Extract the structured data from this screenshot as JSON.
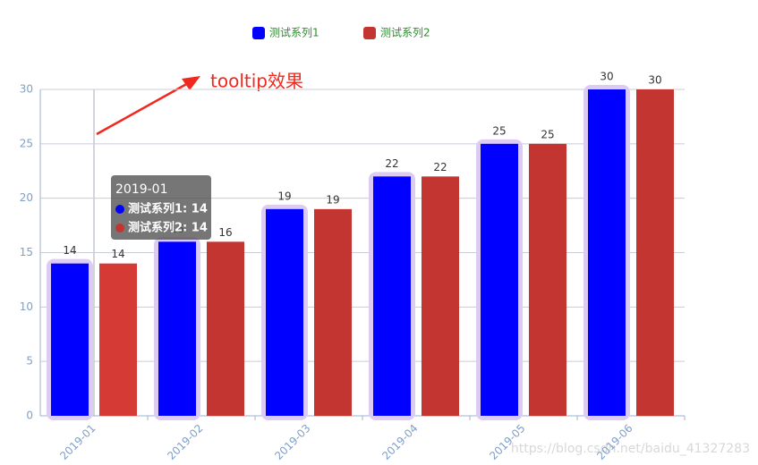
{
  "chart_data": {
    "type": "bar",
    "categories": [
      "2019-01",
      "2019-02",
      "2019-03",
      "2019-04",
      "2019-05",
      "2019-06"
    ],
    "series": [
      {
        "name": "测试系列1",
        "color": "#0000ff",
        "values": [
          14,
          16,
          19,
          22,
          25,
          30
        ]
      },
      {
        "name": "测试系列2",
        "color": "#c23531",
        "values": [
          14,
          16,
          19,
          22,
          25,
          30
        ]
      }
    ],
    "ylim": [
      0,
      30
    ],
    "yticks": [
      0,
      5,
      10,
      15,
      20,
      25,
      30
    ],
    "grid": true,
    "legend_position": "top",
    "annotation": "tooltip效果",
    "tooltip": {
      "title": "2019-01",
      "lines": [
        "测试系列1: 14",
        "测试系列2: 14"
      ]
    },
    "watermark": "https://blog.csdn.net/baidu_41327283"
  }
}
